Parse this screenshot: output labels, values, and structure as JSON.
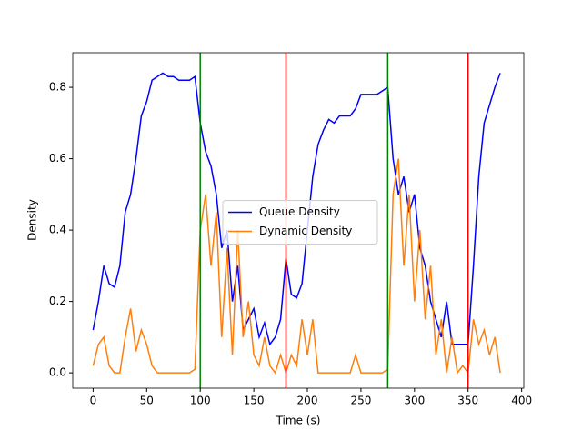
{
  "chart_data": {
    "type": "line",
    "xlabel": "Time (s)",
    "ylabel": "Density",
    "x": [
      0,
      5,
      10,
      15,
      20,
      25,
      30,
      35,
      40,
      45,
      50,
      55,
      60,
      65,
      70,
      75,
      80,
      85,
      90,
      95,
      100,
      105,
      110,
      115,
      120,
      125,
      130,
      135,
      140,
      145,
      150,
      155,
      160,
      165,
      170,
      175,
      180,
      185,
      190,
      195,
      200,
      205,
      210,
      215,
      220,
      225,
      230,
      235,
      240,
      245,
      250,
      255,
      260,
      265,
      270,
      275,
      280,
      285,
      290,
      295,
      300,
      305,
      310,
      315,
      320,
      325,
      330,
      335,
      340,
      345,
      350,
      355,
      360,
      365,
      370,
      375,
      380
    ],
    "series": [
      {
        "name": "Queue Density",
        "color": "#0000ff",
        "values": [
          0.12,
          0.2,
          0.3,
          0.25,
          0.24,
          0.3,
          0.45,
          0.5,
          0.6,
          0.72,
          0.76,
          0.82,
          0.83,
          0.84,
          0.83,
          0.83,
          0.82,
          0.82,
          0.82,
          0.83,
          0.7,
          0.62,
          0.58,
          0.5,
          0.35,
          0.4,
          0.2,
          0.3,
          0.12,
          0.15,
          0.18,
          0.1,
          0.14,
          0.08,
          0.1,
          0.15,
          0.32,
          0.22,
          0.21,
          0.25,
          0.4,
          0.55,
          0.64,
          0.68,
          0.71,
          0.7,
          0.72,
          0.72,
          0.72,
          0.74,
          0.78,
          0.78,
          0.78,
          0.78,
          0.79,
          0.8,
          0.6,
          0.5,
          0.55,
          0.45,
          0.5,
          0.35,
          0.3,
          0.2,
          0.15,
          0.1,
          0.2,
          0.08,
          0.08,
          0.08,
          0.08,
          0.3,
          0.55,
          0.7,
          0.75,
          0.8,
          0.84
        ]
      },
      {
        "name": "Dynamic Density",
        "color": "#ff7f0e",
        "values": [
          0.02,
          0.08,
          0.1,
          0.02,
          0.0,
          0.0,
          0.1,
          0.18,
          0.06,
          0.12,
          0.08,
          0.02,
          0.0,
          0.0,
          0.0,
          0.0,
          0.0,
          0.0,
          0.0,
          0.01,
          0.4,
          0.5,
          0.3,
          0.45,
          0.1,
          0.35,
          0.05,
          0.4,
          0.1,
          0.2,
          0.05,
          0.02,
          0.1,
          0.02,
          0.0,
          0.05,
          0.0,
          0.05,
          0.02,
          0.15,
          0.05,
          0.15,
          0.0,
          0.0,
          0.0,
          0.0,
          0.0,
          0.0,
          0.0,
          0.05,
          0.0,
          0.0,
          0.0,
          0.0,
          0.0,
          0.01,
          0.5,
          0.6,
          0.3,
          0.5,
          0.2,
          0.4,
          0.15,
          0.3,
          0.05,
          0.15,
          0.0,
          0.1,
          0.0,
          0.02,
          0.0,
          0.15,
          0.08,
          0.12,
          0.05,
          0.1,
          0.0
        ]
      }
    ],
    "vlines": [
      {
        "x": 100,
        "color": "green"
      },
      {
        "x": 180,
        "color": "red"
      },
      {
        "x": 275,
        "color": "green"
      },
      {
        "x": 350,
        "color": "red"
      }
    ],
    "xlim": [
      -19,
      402
    ],
    "ylim": [
      -0.043,
      0.897
    ],
    "xticks": [
      0,
      50,
      100,
      150,
      200,
      250,
      300,
      350,
      400
    ],
    "yticks": [
      0.0,
      0.2,
      0.4,
      0.6,
      0.8
    ],
    "legend": "center"
  }
}
